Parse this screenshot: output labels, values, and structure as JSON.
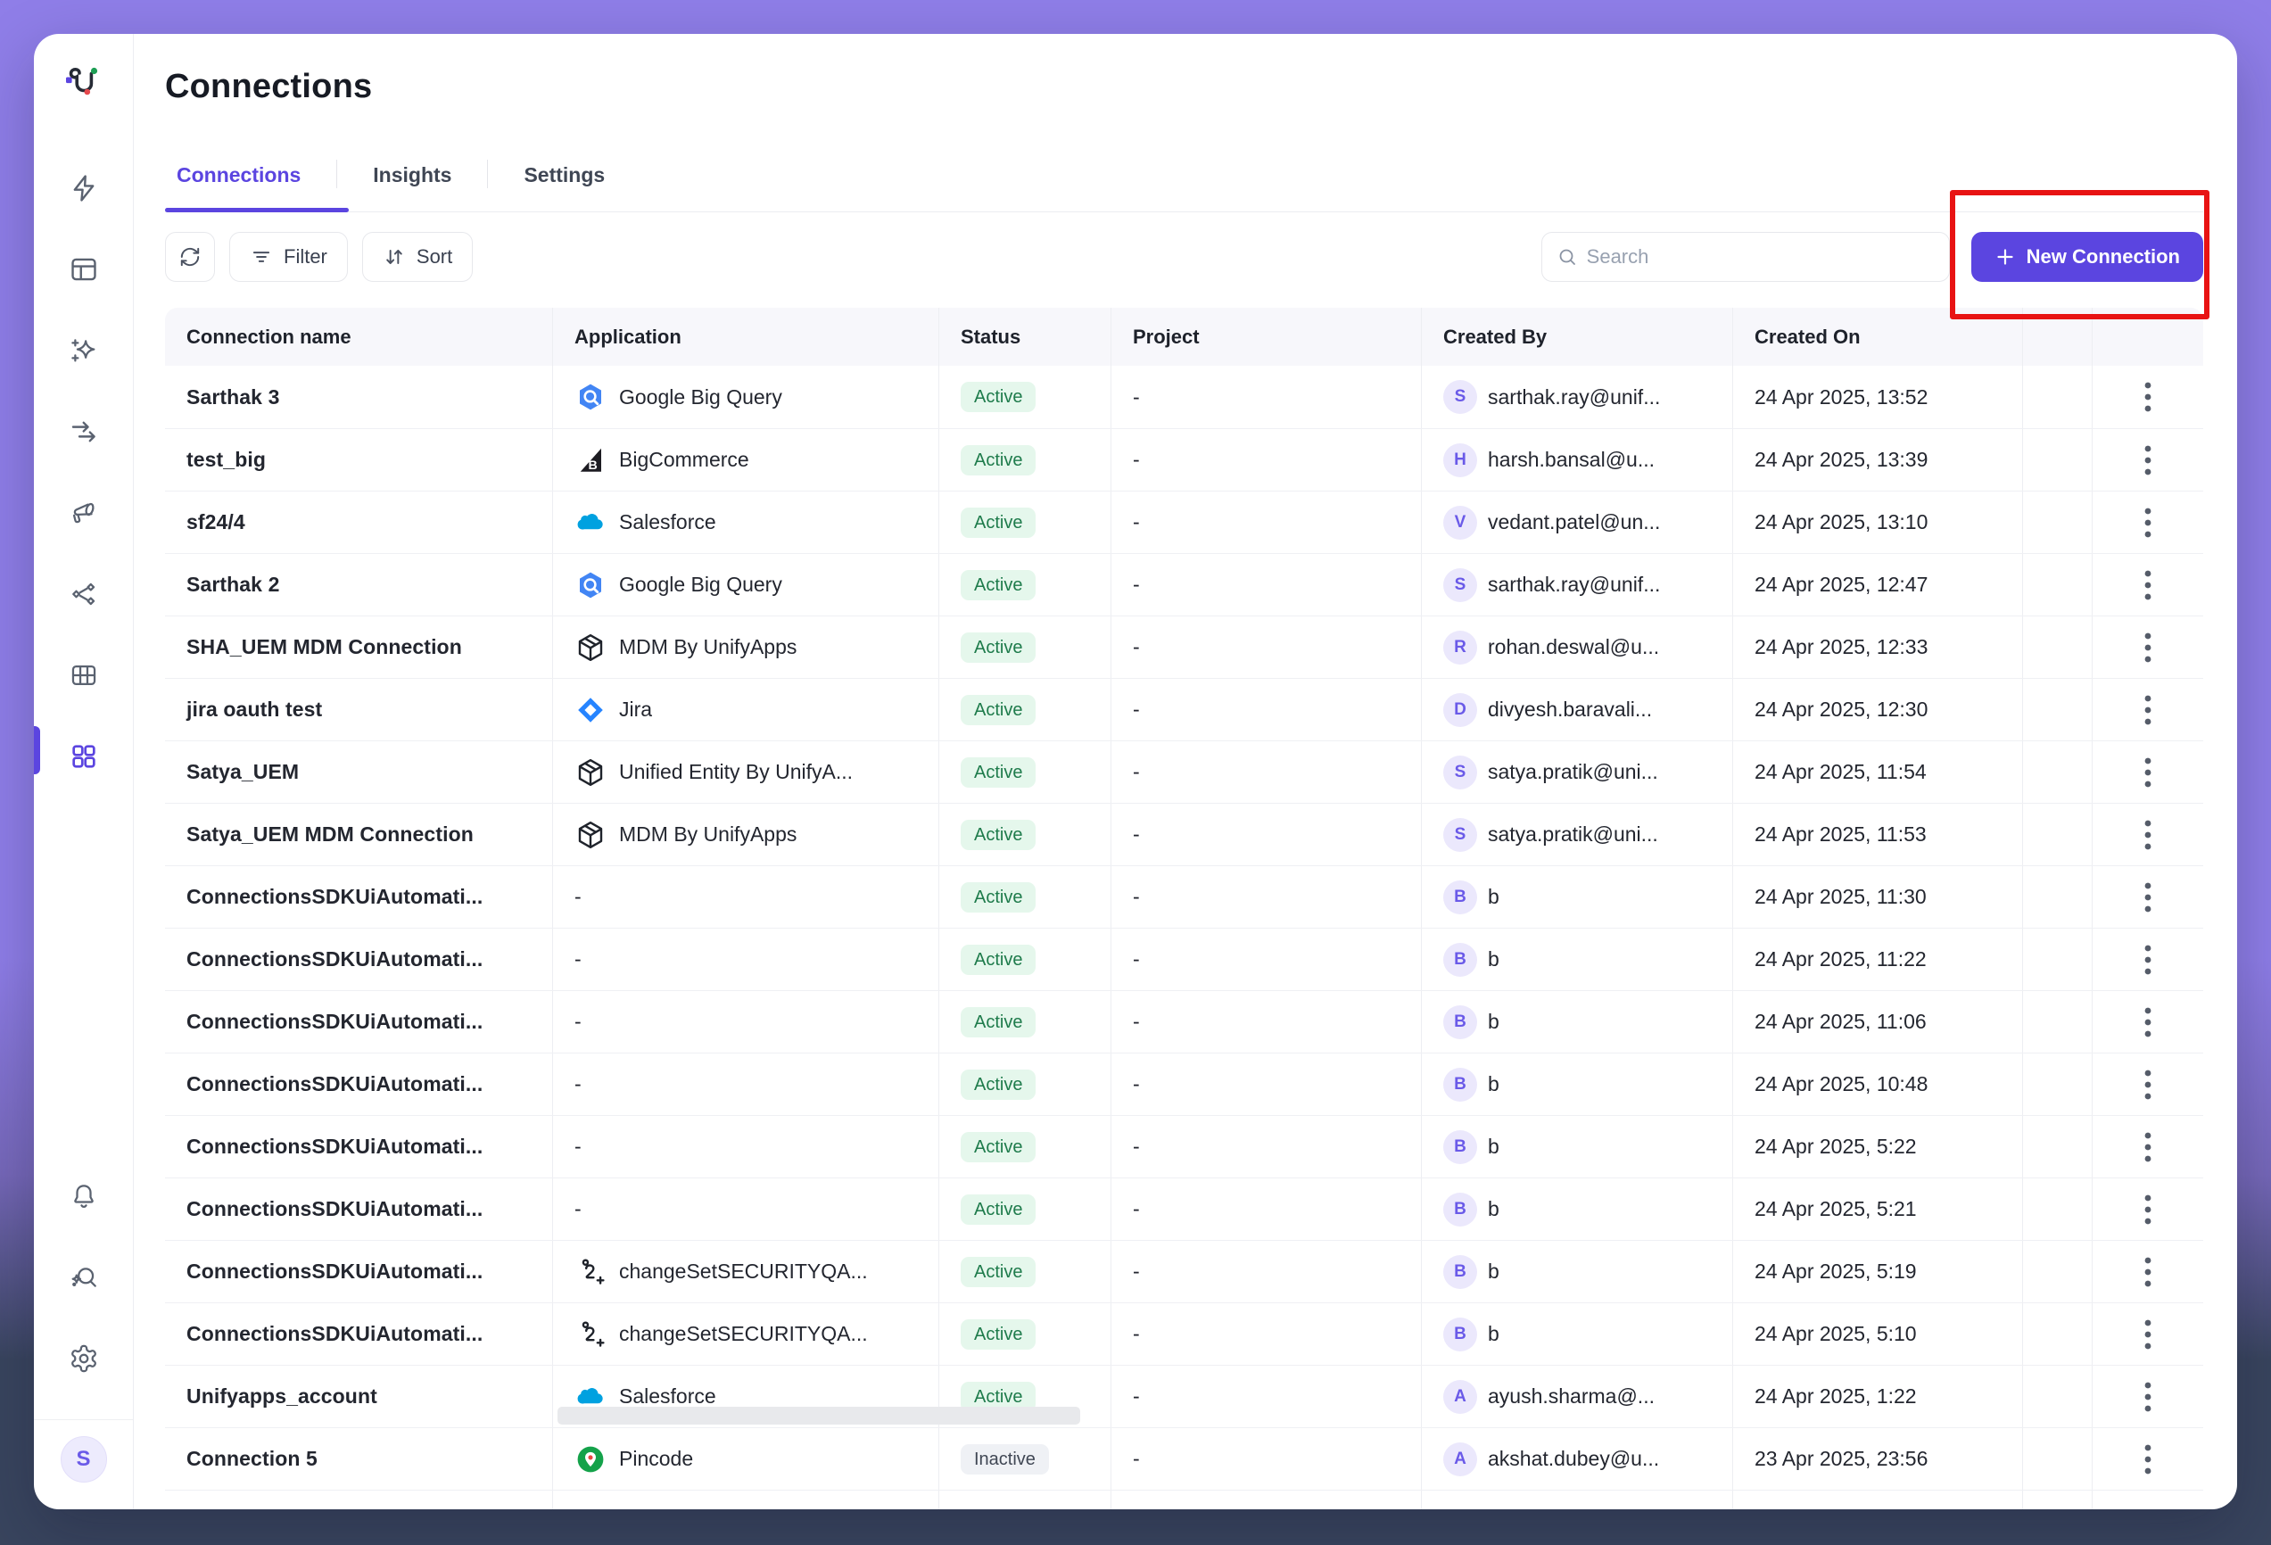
{
  "app": {
    "logo": "unifyapps-logo"
  },
  "page": {
    "title": "Connections"
  },
  "tabs": [
    {
      "label": "Connections",
      "active": true
    },
    {
      "label": "Insights",
      "active": false
    },
    {
      "label": "Settings",
      "active": false
    }
  ],
  "toolbar": {
    "refresh_icon": "refresh-icon",
    "filter_label": "Filter",
    "sort_label": "Sort",
    "search_placeholder": "Search",
    "new_connection_label": "New Connection"
  },
  "sidebar": {
    "icons": [
      "bolt-icon",
      "layout-icon",
      "sparkles-icon",
      "transfer-arrows-icon",
      "megaphone-icon",
      "share-network-icon",
      "table-icon",
      "apps-grid-icon"
    ],
    "active_icon": "apps-grid-icon",
    "bottom_icons": [
      "bell-icon",
      "ai-search-icon",
      "gear-icon"
    ],
    "avatar_initial": "S"
  },
  "annotation": {
    "type": "highlight-box",
    "color": "#E81313",
    "target": "new-connection-button"
  },
  "colors": {
    "accent": "#5B45E0",
    "active_pill_bg": "#E5F7EC",
    "active_pill_text": "#1E7B4B",
    "inactive_pill_bg": "#EFF1F5",
    "inactive_pill_text": "#404754",
    "frame_top": "#8F7EE8",
    "frame_bottom": "#39455E"
  },
  "table": {
    "columns": [
      "Connection name",
      "Application",
      "Status",
      "Project",
      "Created By",
      "Created On"
    ],
    "rows": [
      {
        "name": "Sarthak 3",
        "app": "Google Big Query",
        "icon": "bigquery-icon",
        "status": "Active",
        "project": "-",
        "created_by_initial": "S",
        "created_by": "sarthak.ray@unif...",
        "created_on": "24 Apr 2025, 13:52"
      },
      {
        "name": "test_big",
        "app": "BigCommerce",
        "icon": "bigcommerce-icon",
        "status": "Active",
        "project": "-",
        "created_by_initial": "H",
        "created_by": "harsh.bansal@u...",
        "created_on": "24 Apr 2025, 13:39"
      },
      {
        "name": "sf24/4",
        "app": "Salesforce",
        "icon": "salesforce-icon",
        "status": "Active",
        "project": "-",
        "created_by_initial": "V",
        "created_by": "vedant.patel@un...",
        "created_on": "24 Apr 2025, 13:10"
      },
      {
        "name": "Sarthak 2",
        "app": "Google Big Query",
        "icon": "bigquery-icon",
        "status": "Active",
        "project": "-",
        "created_by_initial": "S",
        "created_by": "sarthak.ray@unif...",
        "created_on": "24 Apr 2025, 12:47"
      },
      {
        "name": "SHA_UEM MDM Connection",
        "app": "MDM By UnifyApps",
        "icon": "package-icon",
        "status": "Active",
        "project": "-",
        "created_by_initial": "R",
        "created_by": "rohan.deswal@u...",
        "created_on": "24 Apr 2025, 12:33"
      },
      {
        "name": "jira oauth test",
        "app": "Jira",
        "icon": "jira-icon",
        "status": "Active",
        "project": "-",
        "created_by_initial": "D",
        "created_by": "divyesh.baravali...",
        "created_on": "24 Apr 2025, 12:30"
      },
      {
        "name": "Satya_UEM",
        "app": "Unified Entity By UnifyA...",
        "icon": "package-icon",
        "status": "Active",
        "project": "-",
        "created_by_initial": "S",
        "created_by": "satya.pratik@uni...",
        "created_on": "24 Apr 2025, 11:54"
      },
      {
        "name": "Satya_UEM MDM Connection",
        "app": "MDM By UnifyApps",
        "icon": "package-icon",
        "status": "Active",
        "project": "-",
        "created_by_initial": "S",
        "created_by": "satya.pratik@uni...",
        "created_on": "24 Apr 2025, 11:53"
      },
      {
        "name": "ConnectionsSDKUiAutomati...",
        "app": "-",
        "icon": "",
        "status": "Active",
        "project": "-",
        "created_by_initial": "B",
        "created_by": "b",
        "created_on": "24 Apr 2025, 11:30"
      },
      {
        "name": "ConnectionsSDKUiAutomati...",
        "app": "-",
        "icon": "",
        "status": "Active",
        "project": "-",
        "created_by_initial": "B",
        "created_by": "b",
        "created_on": "24 Apr 2025, 11:22"
      },
      {
        "name": "ConnectionsSDKUiAutomati...",
        "app": "-",
        "icon": "",
        "status": "Active",
        "project": "-",
        "created_by_initial": "B",
        "created_by": "b",
        "created_on": "24 Apr 2025, 11:06"
      },
      {
        "name": "ConnectionsSDKUiAutomati...",
        "app": "-",
        "icon": "",
        "status": "Active",
        "project": "-",
        "created_by_initial": "B",
        "created_by": "b",
        "created_on": "24 Apr 2025, 10:48"
      },
      {
        "name": "ConnectionsSDKUiAutomati...",
        "app": "-",
        "icon": "",
        "status": "Active",
        "project": "-",
        "created_by_initial": "B",
        "created_by": "b",
        "created_on": "24 Apr 2025, 5:22"
      },
      {
        "name": "ConnectionsSDKUiAutomati...",
        "app": "-",
        "icon": "",
        "status": "Active",
        "project": "-",
        "created_by_initial": "B",
        "created_by": "b",
        "created_on": "24 Apr 2025, 5:21"
      },
      {
        "name": "ConnectionsSDKUiAutomati...",
        "app": "changeSetSECURITYQA...",
        "icon": "changeset-icon",
        "status": "Active",
        "project": "-",
        "created_by_initial": "B",
        "created_by": "b",
        "created_on": "24 Apr 2025, 5:19"
      },
      {
        "name": "ConnectionsSDKUiAutomati...",
        "app": "changeSetSECURITYQA...",
        "icon": "changeset-icon",
        "status": "Active",
        "project": "-",
        "created_by_initial": "B",
        "created_by": "b",
        "created_on": "24 Apr 2025, 5:10"
      },
      {
        "name": "Unifyapps_account",
        "app": "Salesforce",
        "icon": "salesforce-icon",
        "status": "Active",
        "project": "-",
        "created_by_initial": "A",
        "created_by": "ayush.sharma@...",
        "created_on": "24 Apr 2025, 1:22"
      },
      {
        "name": "Connection 5",
        "app": "Pincode",
        "icon": "pincode-icon",
        "status": "Inactive",
        "project": "-",
        "created_by_initial": "A",
        "created_by": "akshat.dubey@u...",
        "created_on": "23 Apr 2025, 23:56"
      }
    ]
  }
}
